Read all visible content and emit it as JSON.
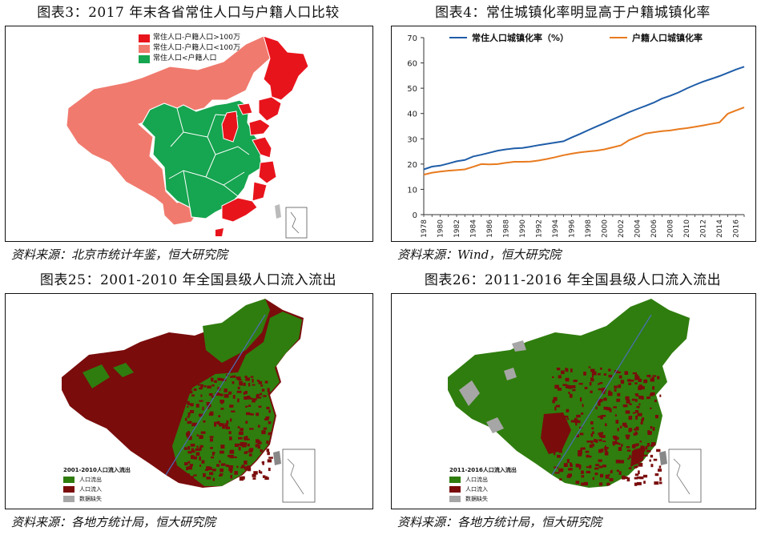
{
  "panels": {
    "p1": {
      "title": "图表3：2017 年末各省常住人口与户籍人口比较",
      "source": "资料来源：北京市统计年鉴，恒大研究院",
      "legend": [
        {
          "label": "常住人口-户籍人口>100万",
          "color": "#e8141c"
        },
        {
          "label": "常住人口-户籍人口<100万",
          "color": "#f07a6e"
        },
        {
          "label": "常住人口<户籍人口",
          "color": "#16a550"
        }
      ]
    },
    "p2": {
      "title": "图表4：常住城镇化率明显高于户籍城镇化率",
      "source": "资料来源：Wind，恒大研究院"
    },
    "p3": {
      "title": "图表25：2001-2010 年全国县级人口流入流出",
      "source": "资料来源：各地方统计局，恒大研究院",
      "legend_title": "2001-2010人口流入流出",
      "legend": [
        {
          "label": "人口流出",
          "color": "#2f7d0e"
        },
        {
          "label": "人口流入",
          "color": "#7a0c0c"
        },
        {
          "label": "数据缺失",
          "color": "#a6a6a6"
        }
      ]
    },
    "p4": {
      "title": "图表26：2011-2016 年全国县级人口流入流出",
      "source": "资料来源：各地方统计局，恒大研究院",
      "legend_title": "2011-2016人口流入流出",
      "legend": [
        {
          "label": "人口流出",
          "color": "#2f7d0e"
        },
        {
          "label": "人口流入",
          "color": "#7a0c0c"
        },
        {
          "label": "数据缺失",
          "color": "#a6a6a6"
        }
      ]
    }
  },
  "chart_data": {
    "type": "line",
    "x": [
      1978,
      1979,
      1980,
      1981,
      1982,
      1983,
      1984,
      1985,
      1986,
      1987,
      1988,
      1989,
      1990,
      1991,
      1992,
      1993,
      1994,
      1995,
      1996,
      1997,
      1998,
      1999,
      2000,
      2001,
      2002,
      2003,
      2004,
      2005,
      2006,
      2007,
      2008,
      2009,
      2010,
      2011,
      2012,
      2013,
      2014,
      2015,
      2016,
      2017
    ],
    "x_tick_labels": [
      "1978",
      "1980",
      "1982",
      "1984",
      "1986",
      "1988",
      "1990",
      "1992",
      "1994",
      "1996",
      "1998",
      "2000",
      "2002",
      "2004",
      "2006",
      "2008",
      "2010",
      "2012",
      "2014",
      "2016"
    ],
    "ylim": [
      0,
      70
    ],
    "y_ticks": [
      0,
      10,
      20,
      30,
      40,
      50,
      60,
      70
    ],
    "legend_position": "top",
    "series": [
      {
        "name": "常住人口城镇化率（%）",
        "color": "#1f5da8",
        "values": [
          17.9,
          19.0,
          19.4,
          20.2,
          21.1,
          21.6,
          23.0,
          23.7,
          24.5,
          25.3,
          25.8,
          26.2,
          26.4,
          26.9,
          27.5,
          28.0,
          28.5,
          29.0,
          30.5,
          31.9,
          33.4,
          34.8,
          36.2,
          37.7,
          39.1,
          40.5,
          41.8,
          43.0,
          44.3,
          45.9,
          47.0,
          48.3,
          49.9,
          51.3,
          52.6,
          53.7,
          54.8,
          56.1,
          57.4,
          58.5
        ]
      },
      {
        "name": "户籍人口城镇化率",
        "color": "#e87a1e",
        "values": [
          15.8,
          16.6,
          17.0,
          17.4,
          17.6,
          17.9,
          18.9,
          20.0,
          19.9,
          20.0,
          20.5,
          20.9,
          20.9,
          21.0,
          21.4,
          22.0,
          22.7,
          23.5,
          24.1,
          24.6,
          25.0,
          25.3,
          25.8,
          26.6,
          27.4,
          29.5,
          30.8,
          32.1,
          32.6,
          33.0,
          33.3,
          33.8,
          34.2,
          34.7,
          35.3,
          35.9,
          36.5,
          39.9,
          41.2,
          42.4
        ]
      }
    ]
  }
}
